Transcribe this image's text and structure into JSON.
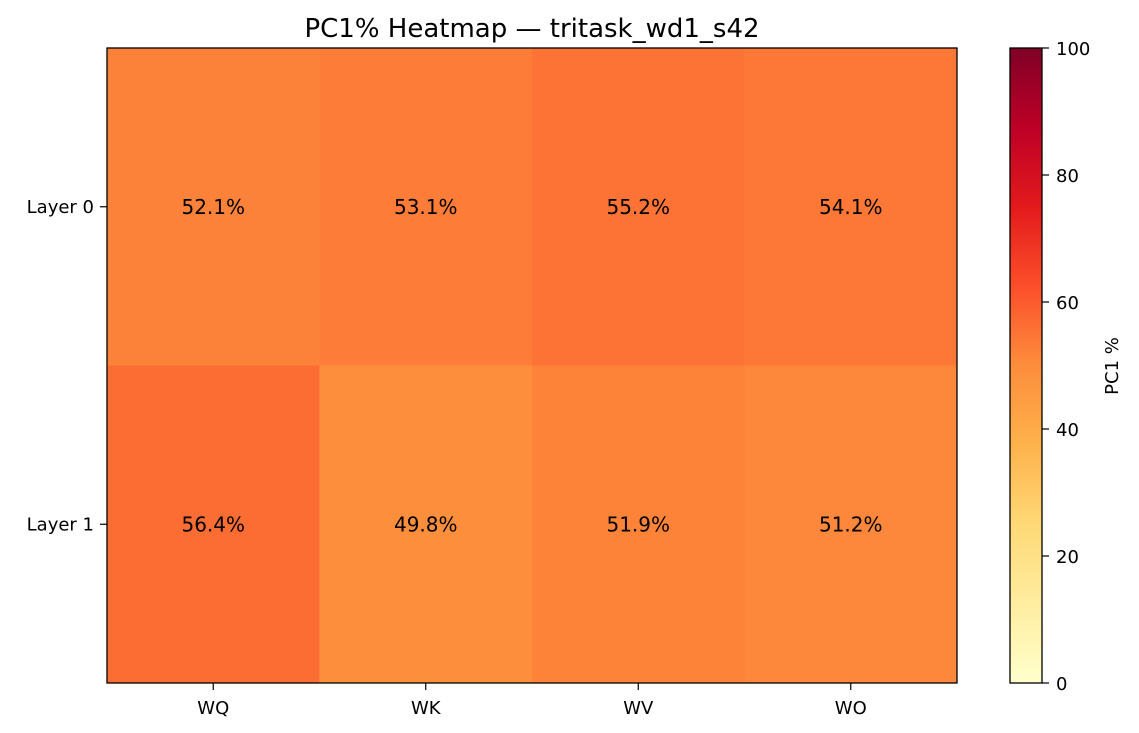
{
  "chart_data": {
    "type": "heatmap",
    "title": "PC1% Heatmap — tritask_wd1_s42",
    "columns": [
      "WQ",
      "WK",
      "WV",
      "WO"
    ],
    "rows": [
      "Layer 0",
      "Layer 1"
    ],
    "values": [
      [
        52.1,
        53.1,
        55.2,
        54.1
      ],
      [
        56.4,
        49.8,
        51.9,
        51.2
      ]
    ],
    "cell_labels": [
      [
        "52.1%",
        "53.1%",
        "55.2%",
        "54.1%"
      ],
      [
        "56.4%",
        "49.8%",
        "51.9%",
        "51.2%"
      ]
    ],
    "colorbar": {
      "label": "PC1 %",
      "range": [
        0,
        100
      ],
      "ticks": [
        0,
        20,
        40,
        60,
        80,
        100
      ],
      "colormap": "YlOrRd"
    }
  }
}
